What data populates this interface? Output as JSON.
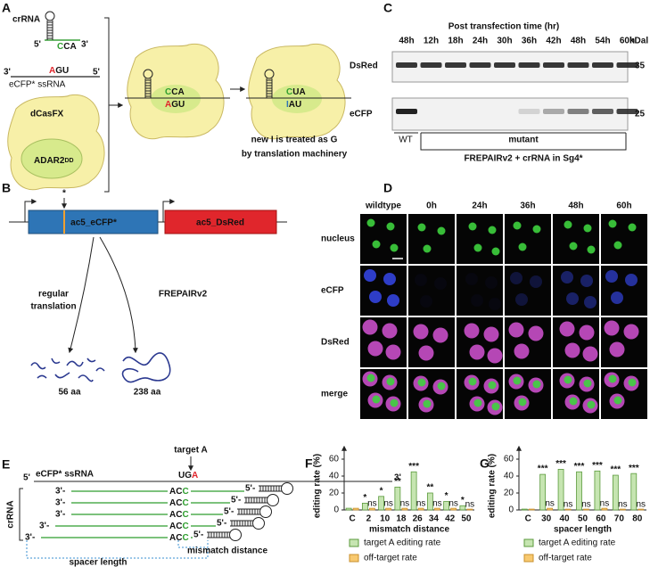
{
  "a": {
    "label": "A",
    "crrna": "crRNA",
    "p5": "5'",
    "p3": "3'",
    "crrna_seq": [
      "C",
      "CA"
    ],
    "ss_seq": [
      "A",
      "GU"
    ],
    "ss_name": "eCFP* ssRNA",
    "enzyme": "dCasFX",
    "domain": [
      "ADAR2",
      "DD"
    ],
    "edited_crrna": [
      "C",
      "UA"
    ],
    "edited_ss": [
      "I",
      "AU"
    ],
    "caption": [
      "new I is treated as G",
      "by translation machinery"
    ]
  },
  "b": {
    "label": "B",
    "star": "*",
    "gene1": "ac5_eCFP*",
    "gene2": "ac5_DsRed",
    "path1": [
      "regular",
      "translation"
    ],
    "path2": "FREPAIRv2",
    "product1": "56 aa",
    "product2": "238 aa"
  },
  "c": {
    "label": "C",
    "title": "Post transfection time (hr)",
    "lanes": [
      "48h",
      "12h",
      "18h",
      "24h",
      "30h",
      "36h",
      "42h",
      "48h",
      "54h",
      "60h"
    ],
    "unit": "kDal",
    "rows": [
      "DsRed",
      "eCFP"
    ],
    "markers": [
      35,
      25
    ],
    "groups": [
      "WT",
      "mutant"
    ],
    "condition": "FREPAIRv2 + crRNA in Sg4*"
  },
  "d": {
    "label": "D",
    "columns": [
      "wildtype",
      "0h",
      "24h",
      "36h",
      "48h",
      "60h"
    ],
    "rows": [
      "nucleus",
      "eCFP",
      "DsRed",
      "merge"
    ]
  },
  "e": {
    "label": "E",
    "p5": "5'",
    "p3": "3'",
    "row_start": "3'-",
    "row_end": "5'-",
    "ss_name": "eCFP* ssRNA",
    "target": "target A",
    "ss_seq": [
      "UG",
      "A"
    ],
    "cr_seq": [
      "AC",
      "C"
    ],
    "crrna": "crRNA",
    "mismatch": "mismatch distance",
    "spacer": "spacer length"
  },
  "chart_data": [
    {
      "type": "bar",
      "panel": "F",
      "ylabel": "editing rate (%)",
      "xlabel": "mismatch distance",
      "categories": [
        "C",
        "2",
        "10",
        "18",
        "26",
        "34",
        "42",
        "50"
      ],
      "ylim": [
        0,
        60
      ],
      "yticks": [
        0,
        20,
        40,
        60
      ],
      "series": [
        {
          "name": "target A editing rate",
          "color": "#c6e5b1",
          "values": [
            2,
            8,
            16,
            27,
            45,
            20,
            10,
            5
          ],
          "significance": [
            null,
            "*",
            "*",
            "**",
            "***",
            "**",
            "*",
            "*"
          ]
        },
        {
          "name": "off-target rate",
          "color": "#f8c96f",
          "values": [
            2,
            2,
            2,
            2,
            2,
            2,
            2,
            1
          ],
          "significance": [
            null,
            "ns",
            "ns",
            "ns",
            "ns",
            "ns",
            "ns",
            "ns"
          ]
        }
      ]
    },
    {
      "type": "bar",
      "panel": "G",
      "ylabel": "editing rate (%)",
      "xlabel": "spacer length",
      "categories": [
        "C",
        "30",
        "40",
        "50",
        "60",
        "70",
        "80"
      ],
      "ylim": [
        0,
        60
      ],
      "yticks": [
        0,
        20,
        40,
        60
      ],
      "series": [
        {
          "name": "target A editing rate",
          "color": "#c6e5b1",
          "values": [
            1,
            42,
            48,
            45,
            46,
            41,
            43
          ],
          "significance": [
            null,
            "***",
            "***",
            "***",
            "***",
            "***",
            "***"
          ]
        },
        {
          "name": "off-target rate",
          "color": "#f8c96f",
          "values": [
            1,
            2,
            1,
            1,
            2,
            1,
            1
          ],
          "significance": [
            null,
            "ns",
            "ns",
            "ns",
            "ns",
            "ns",
            "ns"
          ]
        }
      ]
    }
  ]
}
